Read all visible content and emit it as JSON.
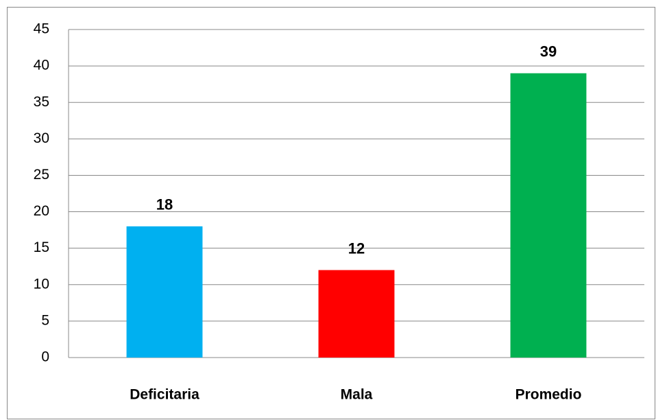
{
  "chart_data": {
    "type": "bar",
    "categories": [
      "Deficitaria",
      "Mala",
      "Promedio"
    ],
    "values": [
      18,
      12,
      39
    ],
    "colors": [
      "#00b0f0",
      "#ff0000",
      "#00b050"
    ],
    "ylim": [
      0,
      45
    ],
    "yticks": [
      0,
      5,
      10,
      15,
      20,
      25,
      30,
      35,
      40,
      45
    ],
    "grid": true,
    "data_labels": true
  }
}
